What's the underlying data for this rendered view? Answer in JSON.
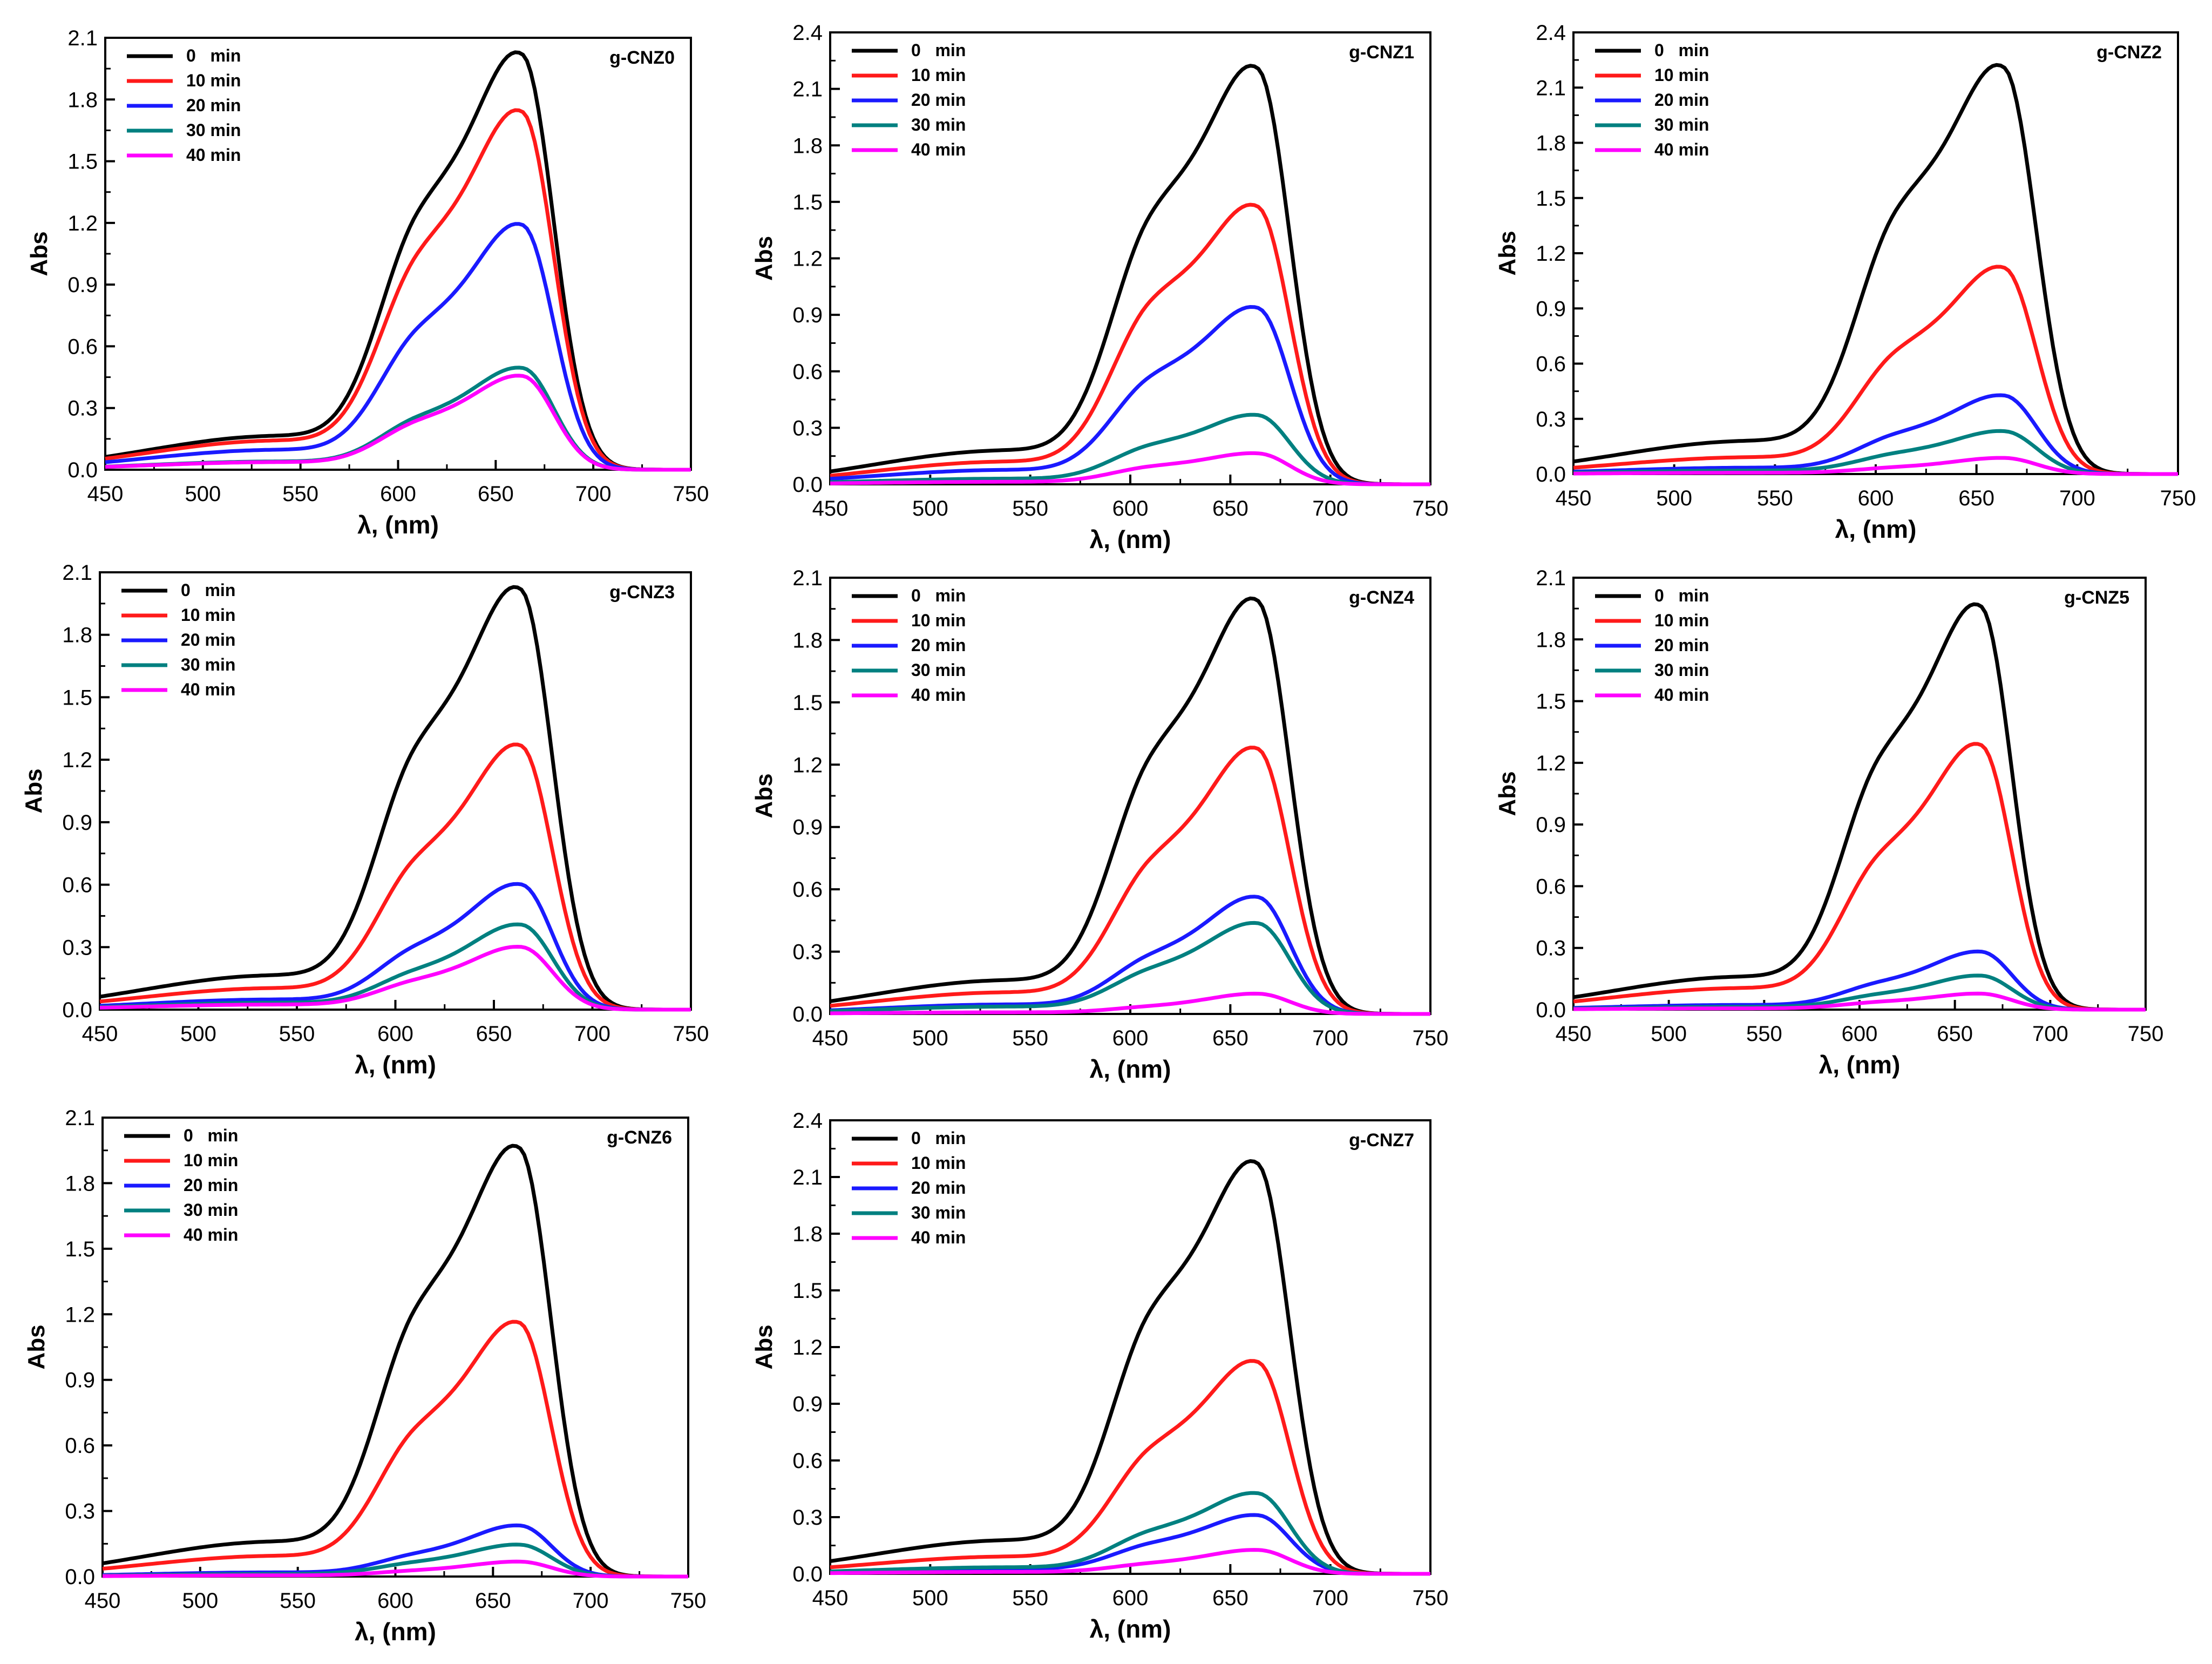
{
  "chart_data": [
    {
      "type": "line",
      "title": "g-CNZ0",
      "xlabel": "λ, (nm)",
      "ylabel": "Abs",
      "xlim": [
        450,
        750
      ],
      "ylim": [
        0,
        2.1
      ],
      "xticks": [
        450,
        500,
        550,
        600,
        650,
        700,
        750
      ],
      "yticks": [
        0.0,
        0.3,
        0.6,
        0.9,
        1.2,
        1.5,
        1.8,
        2.1
      ],
      "legend_position": "top-left",
      "series": [
        {
          "name": "0   min",
          "peak": 2.09,
          "shoulder": 1.31
        },
        {
          "name": "10 min",
          "peak": 1.8,
          "shoulder": 1.1
        },
        {
          "name": "20 min",
          "peak": 1.23,
          "shoulder": 0.72
        },
        {
          "name": "30 min",
          "peak": 0.51,
          "shoulder": 0.27
        },
        {
          "name": "40 min",
          "peak": 0.47,
          "shoulder": 0.25
        }
      ]
    },
    {
      "type": "line",
      "title": "g-CNZ1",
      "xlabel": "λ, (nm)",
      "ylabel": "Abs",
      "xlim": [
        450,
        750
      ],
      "ylim": [
        0,
        2.4
      ],
      "xticks": [
        450,
        500,
        550,
        600,
        650,
        700,
        750
      ],
      "yticks": [
        0.0,
        0.3,
        0.6,
        0.9,
        1.2,
        1.5,
        1.8,
        2.1,
        2.4
      ],
      "legend_position": "top-left",
      "series": [
        {
          "name": "0   min",
          "peak": 2.29,
          "shoulder": 1.5
        },
        {
          "name": "10 min",
          "peak": 1.53,
          "shoulder": 1.02
        },
        {
          "name": "20 min",
          "peak": 0.97,
          "shoulder": 0.6
        },
        {
          "name": "30 min",
          "peak": 0.38,
          "shoulder": 0.22
        },
        {
          "name": "40 min",
          "peak": 0.17,
          "shoulder": 0.1
        }
      ]
    },
    {
      "type": "line",
      "title": "g-CNZ2",
      "xlabel": "λ, (nm)",
      "ylabel": "Abs",
      "xlim": [
        450,
        750
      ],
      "ylim": [
        0,
        2.4
      ],
      "xticks": [
        450,
        500,
        550,
        600,
        650,
        700,
        750
      ],
      "yticks": [
        0.0,
        0.3,
        0.6,
        0.9,
        1.2,
        1.5,
        1.8,
        2.1,
        2.4
      ],
      "legend_position": "top-left",
      "series": [
        {
          "name": "0   min",
          "peak": 2.29,
          "shoulder": 1.5
        },
        {
          "name": "10 min",
          "peak": 1.16,
          "shoulder": 0.7
        },
        {
          "name": "20 min",
          "peak": 0.44,
          "shoulder": 0.23
        },
        {
          "name": "30 min",
          "peak": 0.24,
          "shoulder": 0.12
        },
        {
          "name": "40 min",
          "peak": 0.09,
          "shoulder": 0.04
        }
      ]
    },
    {
      "type": "line",
      "title": "g-CNZ3",
      "xlabel": "λ, (nm)",
      "ylabel": "Abs",
      "xlim": [
        450,
        750
      ],
      "ylim": [
        0,
        2.1
      ],
      "xticks": [
        450,
        500,
        550,
        600,
        650,
        700,
        750
      ],
      "yticks": [
        0.0,
        0.3,
        0.6,
        0.9,
        1.2,
        1.5,
        1.8,
        2.1
      ],
      "legend_position": "top-left",
      "series": [
        {
          "name": "0   min",
          "peak": 2.09,
          "shoulder": 1.32
        },
        {
          "name": "10 min",
          "peak": 1.31,
          "shoulder": 0.76
        },
        {
          "name": "20 min",
          "peak": 0.62,
          "shoulder": 0.32
        },
        {
          "name": "30 min",
          "peak": 0.42,
          "shoulder": 0.2
        },
        {
          "name": "40 min",
          "peak": 0.31,
          "shoulder": 0.15
        }
      ]
    },
    {
      "type": "line",
      "title": "g-CNZ4",
      "xlabel": "λ, (nm)",
      "ylabel": "Abs",
      "xlim": [
        450,
        750
      ],
      "ylim": [
        0,
        2.1
      ],
      "xticks": [
        450,
        500,
        550,
        600,
        650,
        700,
        750
      ],
      "yticks": [
        0.0,
        0.3,
        0.6,
        0.9,
        1.2,
        1.5,
        1.8,
        2.1
      ],
      "legend_position": "top-left",
      "series": [
        {
          "name": "0   min",
          "peak": 2.06,
          "shoulder": 1.3
        },
        {
          "name": "10 min",
          "peak": 1.32,
          "shoulder": 0.78
        },
        {
          "name": "20 min",
          "peak": 0.58,
          "shoulder": 0.3
        },
        {
          "name": "30 min",
          "peak": 0.45,
          "shoulder": 0.23
        },
        {
          "name": "40 min",
          "peak": 0.1,
          "shoulder": 0.04
        }
      ]
    },
    {
      "type": "line",
      "title": "g-CNZ5",
      "xlabel": "λ, (nm)",
      "ylabel": "Abs",
      "xlim": [
        450,
        750
      ],
      "ylim": [
        0,
        2.1
      ],
      "xticks": [
        450,
        500,
        550,
        600,
        650,
        700,
        750
      ],
      "yticks": [
        0.0,
        0.3,
        0.6,
        0.9,
        1.2,
        1.5,
        1.8,
        2.1
      ],
      "legend_position": "top-left",
      "series": [
        {
          "name": "0   min",
          "peak": 2.03,
          "shoulder": 1.28
        },
        {
          "name": "10 min",
          "peak": 1.33,
          "shoulder": 0.79
        },
        {
          "name": "20 min",
          "peak": 0.29,
          "shoulder": 0.14
        },
        {
          "name": "30 min",
          "peak": 0.17,
          "shoulder": 0.08
        },
        {
          "name": "40 min",
          "peak": 0.08,
          "shoulder": 0.04
        }
      ]
    },
    {
      "type": "line",
      "title": "g-CNZ6",
      "xlabel": "λ, (nm)",
      "ylabel": "Abs",
      "xlim": [
        450,
        750
      ],
      "ylim": [
        0,
        2.1
      ],
      "xticks": [
        450,
        500,
        550,
        600,
        650,
        700,
        750
      ],
      "yticks": [
        0.0,
        0.3,
        0.6,
        0.9,
        1.2,
        1.5,
        1.8,
        2.1
      ],
      "legend_position": "top-left",
      "series": [
        {
          "name": "0   min",
          "peak": 2.03,
          "shoulder": 1.28
        },
        {
          "name": "10 min",
          "peak": 1.2,
          "shoulder": 0.71
        },
        {
          "name": "20 min",
          "peak": 0.24,
          "shoulder": 0.11
        },
        {
          "name": "30 min",
          "peak": 0.15,
          "shoulder": 0.07
        },
        {
          "name": "40 min",
          "peak": 0.07,
          "shoulder": 0.03
        }
      ]
    },
    {
      "type": "line",
      "title": "g-CNZ7",
      "xlabel": "λ, (nm)",
      "ylabel": "Abs",
      "xlim": [
        450,
        750
      ],
      "ylim": [
        0,
        2.4
      ],
      "xticks": [
        450,
        500,
        550,
        600,
        650,
        700,
        750
      ],
      "yticks": [
        0.0,
        0.3,
        0.6,
        0.9,
        1.2,
        1.5,
        1.8,
        2.1,
        2.4
      ],
      "legend_position": "top-left",
      "series": [
        {
          "name": "0   min",
          "peak": 2.25,
          "shoulder": 1.46
        },
        {
          "name": "10 min",
          "peak": 1.16,
          "shoulder": 0.7
        },
        {
          "name": "20 min",
          "peak": 0.32,
          "shoulder": 0.17
        },
        {
          "name": "30 min",
          "peak": 0.44,
          "shoulder": 0.24
        },
        {
          "name": "40 min",
          "peak": 0.13,
          "shoulder": 0.06
        }
      ]
    }
  ],
  "colors": {
    "series": [
      "#000000",
      "#ff1a1a",
      "#1a1aff",
      "#008080",
      "#ff00ff"
    ],
    "axis": "#000000",
    "background": "#ffffff"
  }
}
